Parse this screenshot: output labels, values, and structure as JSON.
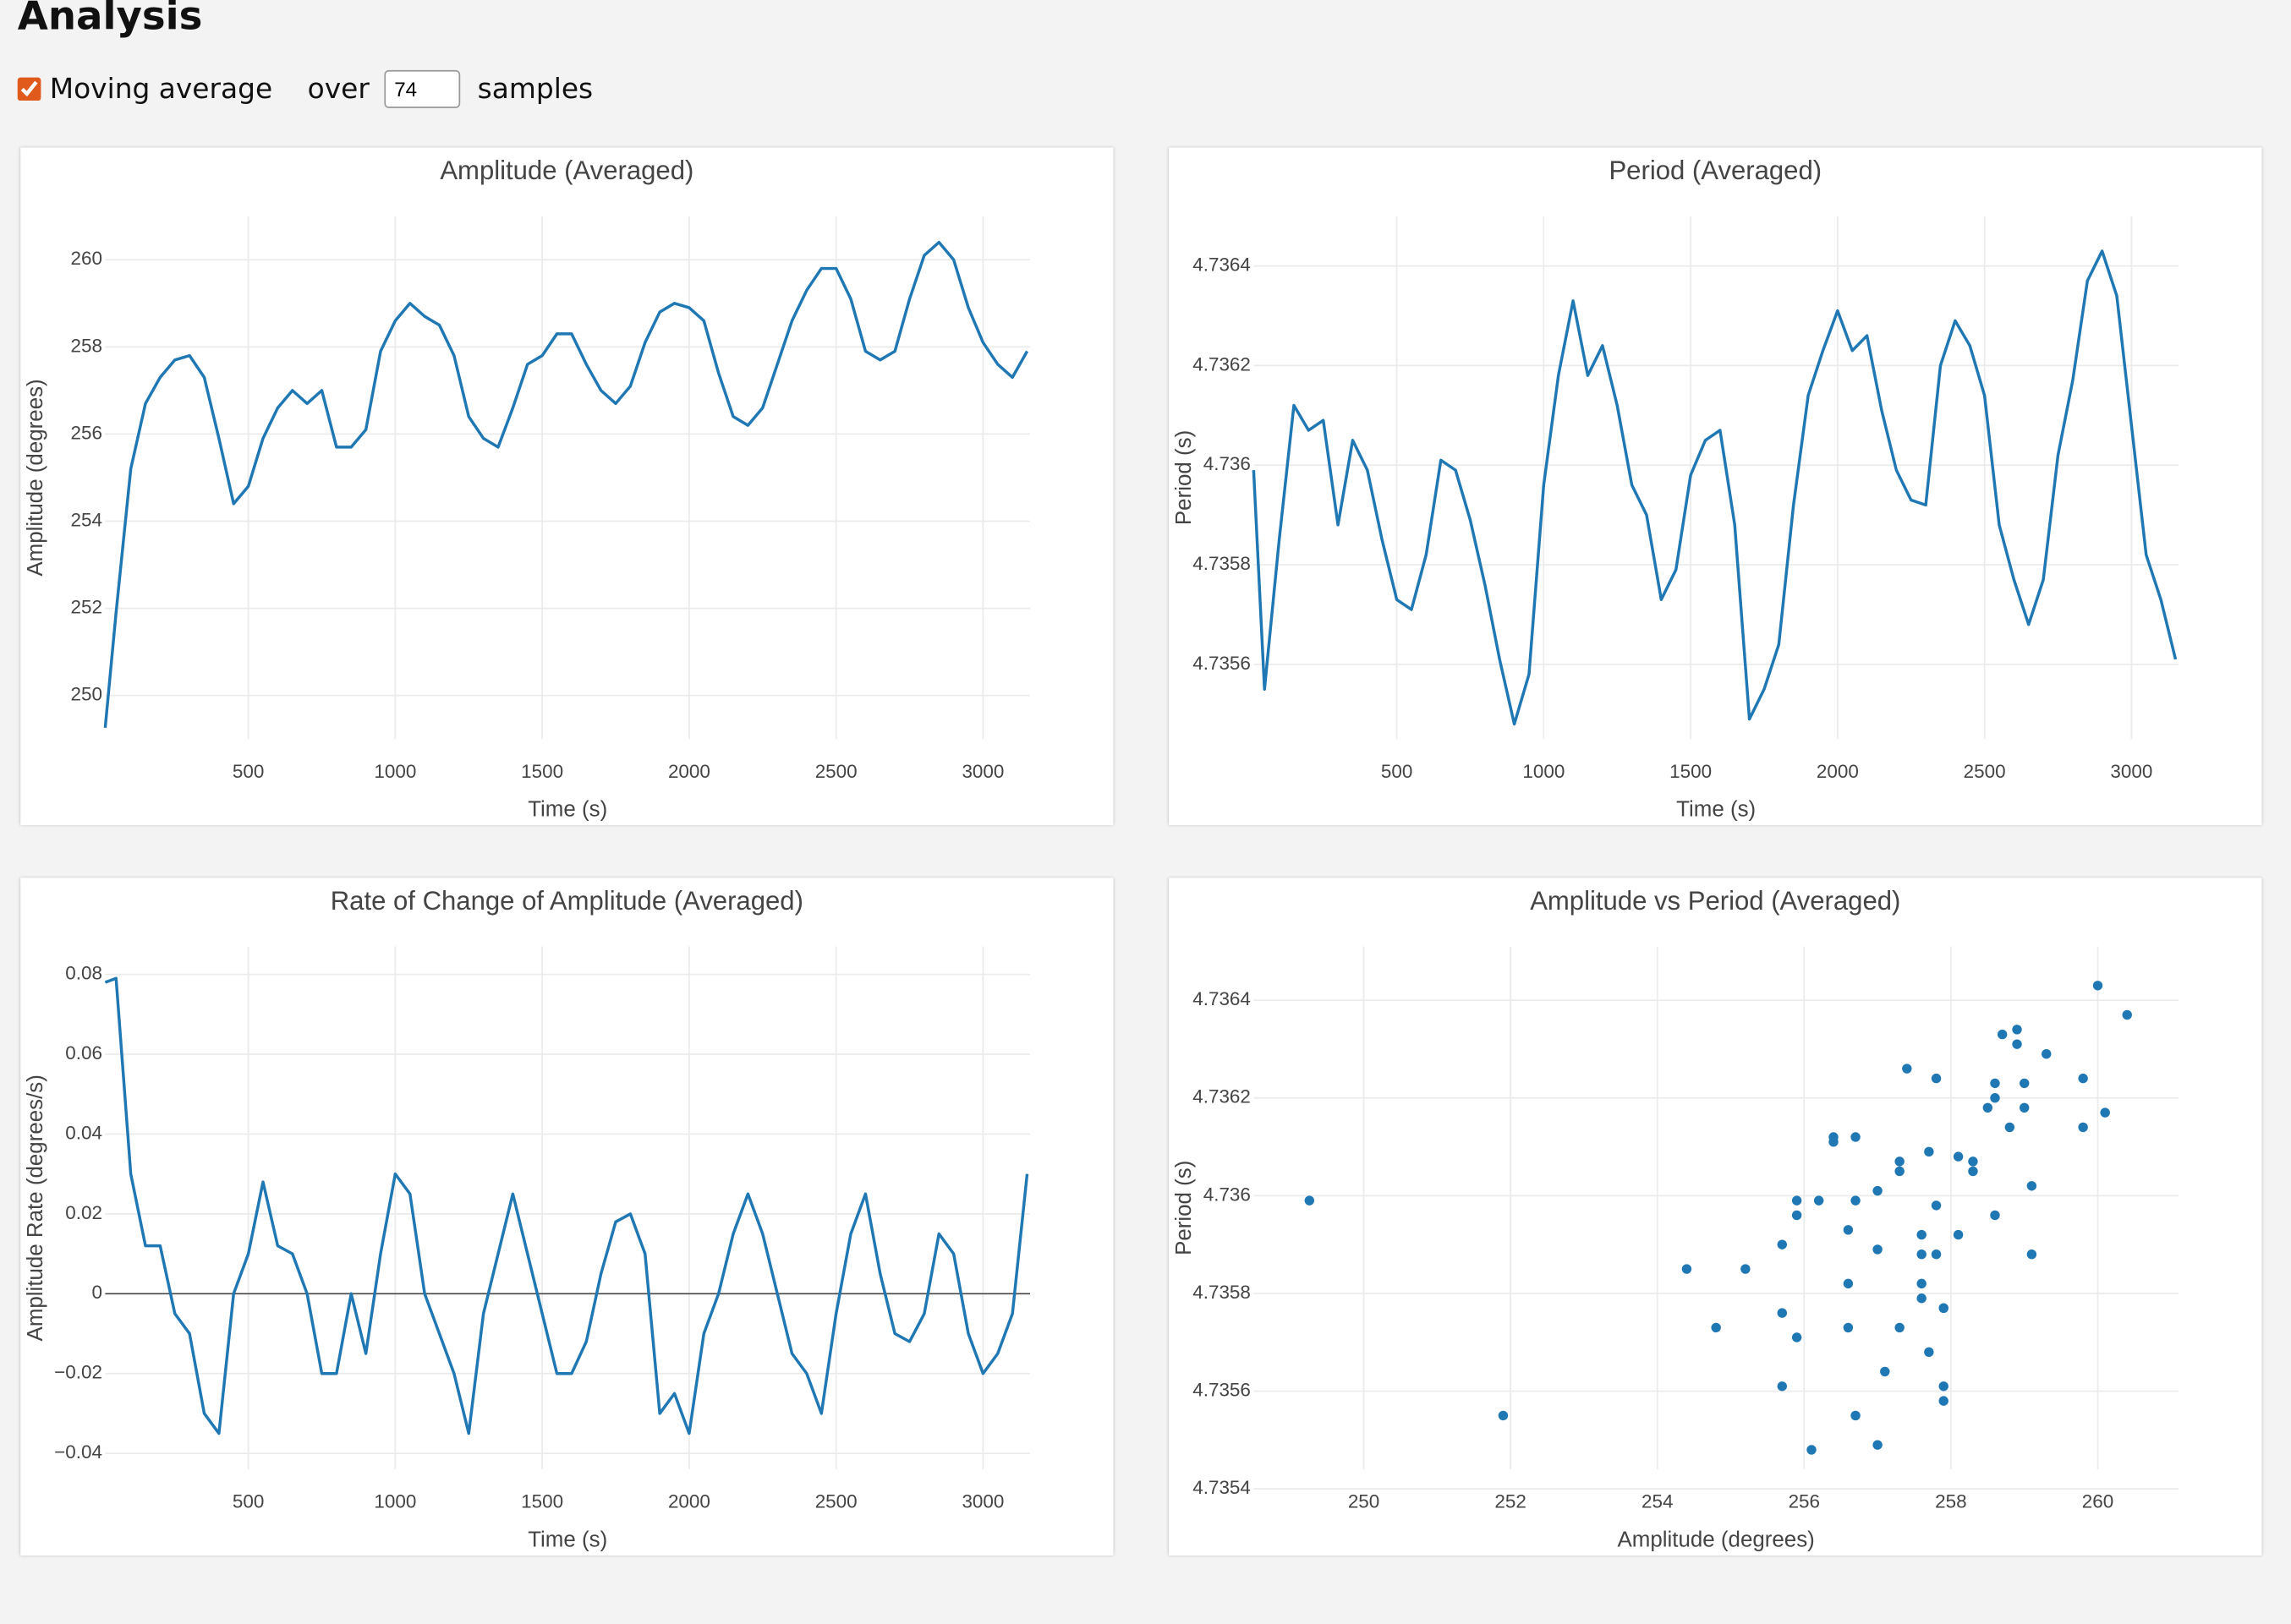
{
  "title": "Analysis",
  "controls": {
    "moving_average": {
      "label": "Moving average",
      "checked": true
    },
    "over_label": "over",
    "window": 74,
    "samples_label": "samples"
  },
  "chart_data": [
    {
      "type": "line",
      "title": "Amplitude (Averaged)",
      "xlabel": "Time (s)",
      "ylabel": "Amplitude (degrees)",
      "color": "#1f77b4",
      "grid": true,
      "x": [
        13,
        50,
        100,
        150,
        200,
        250,
        300,
        350,
        400,
        450,
        500,
        550,
        600,
        650,
        700,
        750,
        800,
        850,
        900,
        950,
        1000,
        1050,
        1100,
        1150,
        1200,
        1250,
        1300,
        1350,
        1400,
        1450,
        1500,
        1550,
        1600,
        1650,
        1700,
        1750,
        1800,
        1850,
        1900,
        1950,
        2000,
        2050,
        2100,
        2150,
        2200,
        2250,
        2300,
        2350,
        2400,
        2450,
        2500,
        2550,
        2600,
        2650,
        2700,
        2750,
        2800,
        2850,
        2900,
        2950,
        3000,
        3050,
        3100,
        3150
      ],
      "values": [
        249.26,
        251.9,
        255.2,
        256.7,
        257.3,
        257.7,
        257.8,
        257.3,
        255.9,
        254.4,
        254.8,
        255.9,
        256.6,
        257.0,
        256.7,
        257.0,
        255.7,
        255.7,
        256.1,
        257.9,
        258.6,
        259.0,
        258.7,
        258.5,
        257.8,
        256.4,
        255.9,
        255.7,
        256.6,
        257.6,
        257.8,
        258.3,
        258.3,
        257.6,
        257.0,
        256.7,
        257.1,
        258.1,
        258.8,
        259.0,
        258.9,
        258.6,
        257.4,
        256.4,
        256.2,
        256.6,
        257.6,
        258.6,
        259.3,
        259.8,
        259.8,
        259.1,
        257.9,
        257.7,
        257.9,
        259.1,
        260.1,
        260.4,
        260.0,
        258.9,
        258.1,
        257.6,
        257.3,
        257.9
      ],
      "xlim": [
        13,
        3160
      ],
      "ylim": [
        249,
        261
      ],
      "xticks": [
        500,
        1000,
        1500,
        2000,
        2500,
        3000
      ],
      "yticks": [
        250,
        252,
        254,
        256,
        258,
        260
      ]
    },
    {
      "type": "line",
      "title": "Period (Averaged)",
      "xlabel": "Time (s)",
      "ylabel": "Period (s)",
      "color": "#1f77b4",
      "grid": true,
      "x": [
        13,
        50,
        100,
        150,
        200,
        250,
        300,
        350,
        400,
        450,
        500,
        550,
        600,
        650,
        700,
        750,
        800,
        850,
        900,
        950,
        1000,
        1050,
        1100,
        1150,
        1200,
        1250,
        1300,
        1350,
        1400,
        1450,
        1500,
        1550,
        1600,
        1650,
        1700,
        1750,
        1800,
        1850,
        1900,
        1950,
        2000,
        2050,
        2100,
        2150,
        2200,
        2250,
        2300,
        2350,
        2400,
        2450,
        2500,
        2550,
        2600,
        2650,
        2700,
        2750,
        2800,
        2850,
        2900,
        2950,
        3000,
        3050,
        3100,
        3150
      ],
      "values": [
        4.73599,
        4.73555,
        4.73585,
        4.73612,
        4.73607,
        4.73609,
        4.73588,
        4.73605,
        4.73599,
        4.73585,
        4.73573,
        4.73571,
        4.73582,
        4.73601,
        4.73599,
        4.73589,
        4.73576,
        4.73561,
        4.73548,
        4.73558,
        4.73596,
        4.73618,
        4.73633,
        4.73618,
        4.73624,
        4.73612,
        4.73596,
        4.7359,
        4.73573,
        4.73579,
        4.73598,
        4.73605,
        4.73607,
        4.73588,
        4.73549,
        4.73555,
        4.73564,
        4.73592,
        4.73614,
        4.73623,
        4.73631,
        4.73623,
        4.73626,
        4.73611,
        4.73599,
        4.73593,
        4.73592,
        4.7362,
        4.73629,
        4.73624,
        4.73614,
        4.73588,
        4.73577,
        4.73568,
        4.73577,
        4.73602,
        4.73617,
        4.73637,
        4.73643,
        4.73634,
        4.73608,
        4.73582,
        4.73573,
        4.73561
      ],
      "xlim": [
        13,
        3160
      ],
      "ylim": [
        4.73545,
        4.7365
      ],
      "xticks": [
        500,
        1000,
        1500,
        2000,
        2500,
        3000
      ],
      "yticks": [
        4.7356,
        4.7358,
        4.736,
        4.7362,
        4.7364
      ]
    },
    {
      "type": "line",
      "title": "Rate of Change of Amplitude (Averaged)",
      "xlabel": "Time (s)",
      "ylabel": "Amplitude Rate (degrees/s)",
      "color": "#1f77b4",
      "grid": true,
      "zeroline": true,
      "x": [
        13,
        50,
        100,
        150,
        200,
        250,
        300,
        350,
        400,
        450,
        500,
        550,
        600,
        650,
        700,
        750,
        800,
        850,
        900,
        950,
        1000,
        1050,
        1100,
        1150,
        1200,
        1250,
        1300,
        1350,
        1400,
        1450,
        1500,
        1550,
        1600,
        1650,
        1700,
        1750,
        1800,
        1850,
        1900,
        1950,
        2000,
        2050,
        2100,
        2150,
        2200,
        2250,
        2300,
        2350,
        2400,
        2450,
        2500,
        2550,
        2600,
        2650,
        2700,
        2750,
        2800,
        2850,
        2900,
        2950,
        3000,
        3050,
        3100,
        3150
      ],
      "values": [
        0.078,
        0.079,
        0.03,
        0.012,
        0.012,
        -0.005,
        -0.01,
        -0.03,
        -0.035,
        0,
        0.01,
        0.028,
        0.012,
        0.01,
        0,
        -0.02,
        -0.02,
        0,
        -0.015,
        0.01,
        0.03,
        0.025,
        0,
        -0.01,
        -0.02,
        -0.035,
        -0.005,
        0.01,
        0.025,
        0.01,
        -0.005,
        -0.02,
        -0.02,
        -0.012,
        0.005,
        0.018,
        0.02,
        0.01,
        -0.03,
        -0.025,
        -0.035,
        -0.01,
        0,
        0.015,
        0.025,
        0.015,
        0,
        -0.015,
        -0.02,
        -0.03,
        -0.005,
        0.015,
        0.025,
        0.005,
        -0.01,
        -0.012,
        -0.005,
        0.015,
        0.01,
        -0.01,
        -0.02,
        -0.015,
        -0.005,
        0.03
      ],
      "xlim": [
        13,
        3160
      ],
      "ylim": [
        -0.044,
        0.087
      ],
      "xticks": [
        500,
        1000,
        1500,
        2000,
        2500,
        3000
      ],
      "yticks": [
        {
          "value": -0.04,
          "label": "−0.04"
        },
        {
          "value": -0.02,
          "label": "−0.02"
        },
        0,
        0.02,
        0.04,
        0.06,
        0.08
      ]
    },
    {
      "type": "scatter",
      "title": "Amplitude vs Period (Averaged)",
      "xlabel": "Amplitude (degrees)",
      "ylabel": "Period (s)",
      "color": "#1f77b4",
      "grid": true,
      "x": [
        249.26,
        251.9,
        255.2,
        256.7,
        257.3,
        257.7,
        257.8,
        257.3,
        255.9,
        254.4,
        254.8,
        255.9,
        256.6,
        257.0,
        256.7,
        257.0,
        255.7,
        255.7,
        256.1,
        257.9,
        258.6,
        259.0,
        258.7,
        258.5,
        257.8,
        256.4,
        255.9,
        255.7,
        256.6,
        257.6,
        257.8,
        258.3,
        258.3,
        257.6,
        257.0,
        256.7,
        257.1,
        258.1,
        258.8,
        259.0,
        258.9,
        258.6,
        257.4,
        256.4,
        256.2,
        256.6,
        257.6,
        258.6,
        259.3,
        259.8,
        259.8,
        259.1,
        257.9,
        257.7,
        257.9,
        259.1,
        260.1,
        260.4,
        260.0,
        258.9,
        258.1,
        257.6,
        257.3,
        257.9
      ],
      "values": [
        4.73599,
        4.73555,
        4.73585,
        4.73612,
        4.73607,
        4.73609,
        4.73588,
        4.73605,
        4.73599,
        4.73585,
        4.73573,
        4.73571,
        4.73582,
        4.73601,
        4.73599,
        4.73589,
        4.73576,
        4.73561,
        4.73548,
        4.73558,
        4.73596,
        4.73618,
        4.73633,
        4.73618,
        4.73624,
        4.73612,
        4.73596,
        4.7359,
        4.73573,
        4.73579,
        4.73598,
        4.73605,
        4.73607,
        4.73588,
        4.73549,
        4.73555,
        4.73564,
        4.73592,
        4.73614,
        4.73623,
        4.73631,
        4.73623,
        4.73626,
        4.73611,
        4.73599,
        4.73593,
        4.73592,
        4.7362,
        4.73629,
        4.73624,
        4.73614,
        4.73588,
        4.73577,
        4.73568,
        4.73577,
        4.73602,
        4.73617,
        4.73637,
        4.73643,
        4.73634,
        4.73608,
        4.73582,
        4.73573,
        4.73561
      ],
      "xlim": [
        248.5,
        261.1
      ],
      "ylim": [
        4.73544,
        4.73651
      ],
      "xticks": [
        250,
        252,
        254,
        256,
        258,
        260
      ],
      "yticks": [
        4.7354,
        4.7356,
        4.7358,
        4.736,
        4.7362,
        4.7364
      ]
    }
  ]
}
